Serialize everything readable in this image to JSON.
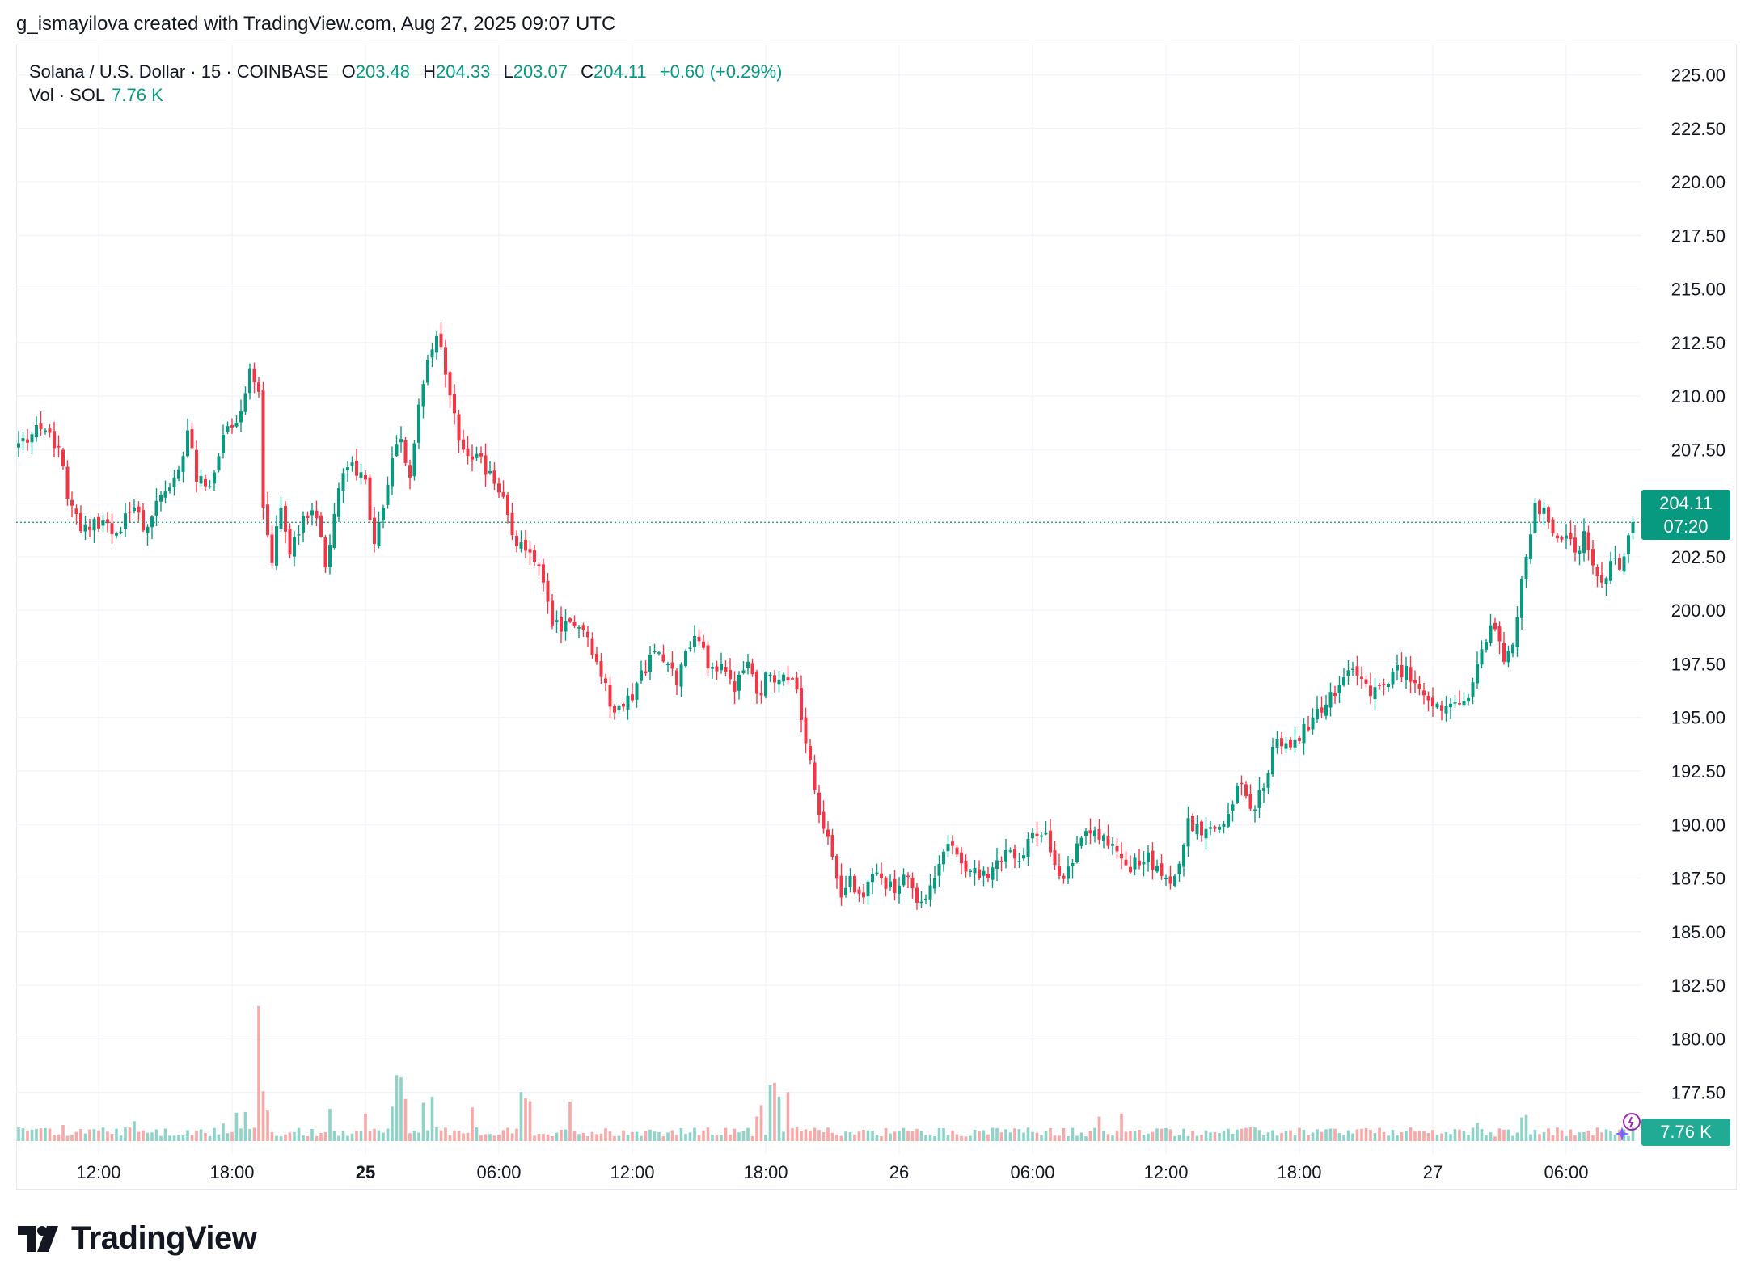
{
  "header": {
    "attribution": "g_ismayilova created with TradingView.com, Aug 27, 2025 09:07 UTC"
  },
  "legend": {
    "symbol": "Solana / U.S. Dollar · 15 · COINBASE",
    "open_label": "O",
    "open": "203.48",
    "high_label": "H",
    "high": "204.33",
    "low_label": "L",
    "low": "203.07",
    "close_label": "C",
    "close": "204.11",
    "change": "+0.60 (+0.29%)",
    "volume_label": "Vol · SOL",
    "volume": "7.76 K"
  },
  "badges": {
    "last_price": "204.11",
    "countdown": "07:20",
    "last_volume": "7.76 K"
  },
  "colors": {
    "up": "#089981",
    "down": "#f23645",
    "vol_up": "#8fd3c8",
    "vol_down": "#f7a9a7",
    "grid": "#f0f3fa"
  },
  "brand": {
    "name": "TradingView"
  },
  "chart_data": {
    "type": "candlestick",
    "title": "Solana / U.S. Dollar · 15 · COINBASE",
    "y_axis": {
      "ylim": [
        175.9,
        226.0
      ],
      "ticks": [
        "225.00",
        "222.50",
        "220.00",
        "217.50",
        "215.00",
        "212.50",
        "210.00",
        "207.50",
        "205.00",
        "202.50",
        "200.00",
        "197.50",
        "195.00",
        "192.50",
        "190.00",
        "187.50",
        "185.00",
        "182.50",
        "180.00",
        "177.50"
      ]
    },
    "x_axis": {
      "ticks": [
        {
          "label": "12:00",
          "index": 18,
          "bold": false
        },
        {
          "label": "18:00",
          "index": 48,
          "bold": false
        },
        {
          "label": "25",
          "index": 78,
          "bold": true
        },
        {
          "label": "06:00",
          "index": 108,
          "bold": false
        },
        {
          "label": "12:00",
          "index": 138,
          "bold": false
        },
        {
          "label": "18:00",
          "index": 168,
          "bold": false
        },
        {
          "label": "26",
          "index": 198,
          "bold": false
        },
        {
          "label": "06:00",
          "index": 228,
          "bold": false
        },
        {
          "label": "12:00",
          "index": 258,
          "bold": false
        },
        {
          "label": "18:00",
          "index": 288,
          "bold": false
        },
        {
          "label": "27",
          "index": 318,
          "bold": false
        },
        {
          "label": "06:00",
          "index": 348,
          "bold": false
        }
      ]
    },
    "bar_count": 364,
    "last_close": 204.11,
    "anchor_closes": [
      [
        0,
        207.8
      ],
      [
        6,
        208.4
      ],
      [
        9,
        207.6
      ],
      [
        11,
        205.2
      ],
      [
        14,
        203.7
      ],
      [
        19,
        204.2
      ],
      [
        22,
        203.6
      ],
      [
        25,
        204.6
      ],
      [
        29,
        203.9
      ],
      [
        32,
        205.4
      ],
      [
        35,
        206.2
      ],
      [
        37,
        207.2
      ],
      [
        38,
        208.4
      ],
      [
        40,
        206.0
      ],
      [
        43,
        205.8
      ],
      [
        45,
        207.2
      ],
      [
        47,
        208.6
      ],
      [
        50,
        209.3
      ],
      [
        52,
        211.3
      ],
      [
        54,
        210.2
      ],
      [
        55,
        204.8
      ],
      [
        57,
        202.2
      ],
      [
        59,
        204.8
      ],
      [
        61,
        202.6
      ],
      [
        64,
        204.4
      ],
      [
        67,
        204.3
      ],
      [
        69,
        202.0
      ],
      [
        72,
        205.7
      ],
      [
        75,
        206.9
      ],
      [
        78,
        206.1
      ],
      [
        80,
        203.1
      ],
      [
        82,
        204.8
      ],
      [
        84,
        207.1
      ],
      [
        86,
        208.0
      ],
      [
        88,
        206.2
      ],
      [
        90,
        209.6
      ],
      [
        92,
        211.7
      ],
      [
        94,
        212.8
      ],
      [
        96,
        211.0
      ],
      [
        98,
        209.2
      ],
      [
        100,
        207.5
      ],
      [
        103,
        207.3
      ],
      [
        106,
        206.5
      ],
      [
        109,
        205.3
      ],
      [
        112,
        203.0
      ],
      [
        115,
        202.7
      ],
      [
        118,
        201.3
      ],
      [
        120,
        199.3
      ],
      [
        123,
        199.5
      ],
      [
        127,
        199.1
      ],
      [
        130,
        197.6
      ],
      [
        133,
        195.5
      ],
      [
        136,
        195.5
      ],
      [
        138,
        195.8
      ],
      [
        140,
        197.2
      ],
      [
        143,
        198.1
      ],
      [
        146,
        197.5
      ],
      [
        148,
        196.5
      ],
      [
        150,
        198.1
      ],
      [
        152,
        198.8
      ],
      [
        155,
        197.3
      ],
      [
        158,
        197.5
      ],
      [
        161,
        196.2
      ],
      [
        164,
        197.6
      ],
      [
        166,
        196.1
      ],
      [
        169,
        197.0
      ],
      [
        172,
        197.0
      ],
      [
        175,
        196.3
      ],
      [
        177,
        193.8
      ],
      [
        179,
        191.6
      ],
      [
        181,
        189.8
      ],
      [
        183,
        188.5
      ],
      [
        185,
        186.6
      ],
      [
        187,
        187.6
      ],
      [
        190,
        186.6
      ],
      [
        192,
        187.7
      ],
      [
        195,
        187.0
      ],
      [
        197,
        186.8
      ],
      [
        200,
        187.6
      ],
      [
        203,
        186.4
      ],
      [
        206,
        187.5
      ],
      [
        209,
        189.1
      ],
      [
        211,
        188.6
      ],
      [
        213,
        187.8
      ],
      [
        216,
        187.5
      ],
      [
        219,
        188.0
      ],
      [
        222,
        188.8
      ],
      [
        225,
        188.3
      ],
      [
        228,
        189.6
      ],
      [
        231,
        189.6
      ],
      [
        234,
        187.6
      ],
      [
        237,
        188.2
      ],
      [
        240,
        189.7
      ],
      [
        243,
        189.3
      ],
      [
        246,
        189.1
      ],
      [
        249,
        188.1
      ],
      [
        252,
        188.1
      ],
      [
        254,
        188.7
      ],
      [
        257,
        187.6
      ],
      [
        260,
        187.6
      ],
      [
        263,
        190.3
      ],
      [
        266,
        189.5
      ],
      [
        269,
        189.8
      ],
      [
        272,
        190.5
      ],
      [
        275,
        191.9
      ],
      [
        278,
        190.7
      ],
      [
        281,
        192.4
      ],
      [
        283,
        194.0
      ],
      [
        285,
        193.8
      ],
      [
        288,
        193.9
      ],
      [
        291,
        195.0
      ],
      [
        294,
        195.6
      ],
      [
        297,
        196.5
      ],
      [
        299,
        197.2
      ],
      [
        302,
        196.8
      ],
      [
        304,
        196.0
      ],
      [
        306,
        196.5
      ],
      [
        309,
        197.1
      ],
      [
        312,
        197.4
      ],
      [
        314,
        196.6
      ],
      [
        317,
        195.8
      ],
      [
        320,
        195.3
      ],
      [
        323,
        195.7
      ],
      [
        326,
        195.9
      ],
      [
        328,
        197.5
      ],
      [
        331,
        199.3
      ],
      [
        334,
        197.6
      ],
      [
        336,
        198.4
      ],
      [
        339,
        202.5
      ],
      [
        341,
        205.0
      ],
      [
        343,
        204.8
      ],
      [
        345,
        203.6
      ],
      [
        347,
        203.3
      ],
      [
        350,
        202.7
      ],
      [
        352,
        203.7
      ],
      [
        354,
        202.1
      ],
      [
        356,
        201.3
      ],
      [
        358,
        202.3
      ],
      [
        360,
        201.9
      ],
      [
        362,
        203.5
      ],
      [
        363,
        204.11
      ]
    ],
    "volume_ylim": [
      0,
      35
    ],
    "volume_spikes": [
      [
        10,
        4.2
      ],
      [
        26,
        5.2
      ],
      [
        46,
        4.6
      ],
      [
        49,
        7.4
      ],
      [
        51,
        7.6
      ],
      [
        54,
        35.2
      ],
      [
        55,
        13.0
      ],
      [
        56,
        8.0
      ],
      [
        70,
        8.4
      ],
      [
        78,
        7.2
      ],
      [
        84,
        9.0
      ],
      [
        85,
        17.2
      ],
      [
        86,
        16.6
      ],
      [
        87,
        11.0
      ],
      [
        91,
        10.0
      ],
      [
        93,
        11.6
      ],
      [
        102,
        8.8
      ],
      [
        113,
        12.8
      ],
      [
        114,
        11.2
      ],
      [
        115,
        10.4
      ],
      [
        124,
        10.3
      ],
      [
        166,
        6.4
      ],
      [
        167,
        9.4
      ],
      [
        169,
        14.6
      ],
      [
        170,
        15.2
      ],
      [
        171,
        11.6
      ],
      [
        173,
        12.8
      ],
      [
        243,
        6.4
      ],
      [
        248,
        7.2
      ],
      [
        328,
        4.8
      ],
      [
        338,
        6.2
      ],
      [
        339,
        6.8
      ]
    ]
  }
}
